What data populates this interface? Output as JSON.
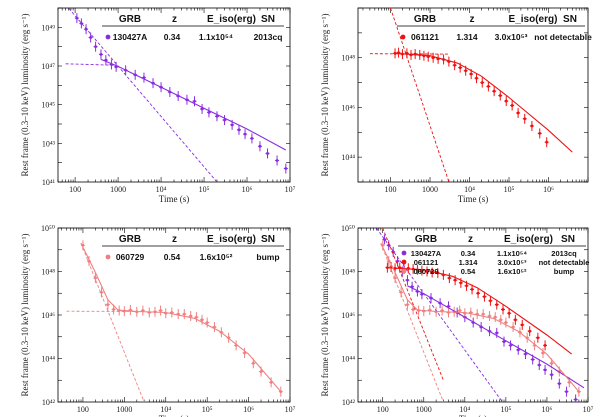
{
  "chart_data": [
    {
      "type": "line",
      "panel": "top-left",
      "xlabel": "Time (s)",
      "ylabel": "Rest frame (0.3–10 keV) luminosity (erg s⁻¹)",
      "xscale": "log",
      "yscale": "log",
      "xlim": [
        40,
        10000000
      ],
      "ylim": [
        1e+41,
        1e+50
      ],
      "xticks": [
        {
          "v": 100,
          "label": "100"
        },
        {
          "v": 1000,
          "label": "1000"
        },
        {
          "v": 10000,
          "label": "10⁴"
        },
        {
          "v": 100000,
          "label": "10⁵"
        },
        {
          "v": 1000000,
          "label": "10⁶"
        },
        {
          "v": 10000000,
          "label": "10⁷"
        }
      ],
      "yticks": [
        {
          "v": 1e+41,
          "label": "10⁴¹"
        },
        {
          "v": 1e+43,
          "label": "10⁴³"
        },
        {
          "v": 1e+45,
          "label": "10⁴⁵"
        },
        {
          "v": 1e+47,
          "label": "10⁴⁷"
        },
        {
          "v": 1e+49,
          "label": "10⁴⁹"
        }
      ],
      "legend_table": {
        "headers": [
          "GRB",
          "z",
          "E_iso(erg)",
          "SN"
        ],
        "rows": [
          {
            "grb": "130427A",
            "z": "0.34",
            "eiso": "1.1x10⁵⁴",
            "sn": "2013cq",
            "color": "#8a2be2"
          }
        ]
      },
      "series": [
        {
          "name": "130427A",
          "color": "#8a2be2",
          "x": [
            110,
            140,
            180,
            230,
            300,
            400,
            520,
            700,
            900,
            1500,
            2500,
            4000,
            6500,
            10000,
            16000,
            25000,
            40000,
            60000,
            90000,
            130000,
            200000,
            300000,
            450000,
            650000,
            900000,
            1300000,
            2000000,
            3000000,
            5000000,
            8000000
          ],
          "y": [
            3e+49,
            1.6e+49,
            8e+48,
            3e+48,
            1e+48,
            4e+47,
            2e+47,
            1.2e+47,
            9e+46,
            6e+46,
            3.5e+46,
            2.5e+46,
            1.3e+46,
            8e+45,
            4.5e+45,
            2.8e+45,
            1.8e+45,
            1.5e+45,
            6e+44,
            4e+44,
            2.5e+44,
            1.6e+44,
            9e+43,
            5e+43,
            3e+43,
            1.8e+43,
            7e+42,
            3e+42,
            1.3e+42,
            5e+41
          ]
        },
        {
          "name": "",
          "color": "#8a2be2",
          "dashed": true,
          "x": [
            60,
            200000
          ],
          "y": [
            1.5e+50,
            1e+41
          ]
        },
        {
          "name": "",
          "color": "#8a2be2",
          "dashed": true,
          "x": [
            60,
            800
          ],
          "y": [
            1.3e+47,
            1.1e+47
          ]
        },
        {
          "name": "",
          "color": "#8a2be2",
          "x": [
            400,
            1000,
            10000,
            100000,
            1000000,
            8000000
          ],
          "y": [
            2.2e+47,
            9.5e+46,
            8e+45,
            6.5e+44,
            5.5e+43,
            4.5e+42
          ]
        }
      ]
    },
    {
      "type": "line",
      "panel": "top-right",
      "xlabel": "Time (s)",
      "ylabel": "Rest frame (0.3–10 keV) luminosity (erg s⁻¹)",
      "xscale": "log",
      "yscale": "log",
      "xlim": [
        15,
        10000000
      ],
      "ylim": [
        1e+43,
        1e+50
      ],
      "xticks": [
        {
          "v": 100,
          "label": "100"
        },
        {
          "v": 1000,
          "label": "1000"
        },
        {
          "v": 10000,
          "label": "10⁴"
        },
        {
          "v": 100000,
          "label": "10⁵"
        },
        {
          "v": 1000000,
          "label": "10⁶"
        }
      ],
      "yticks": [
        {
          "v": 1e+44,
          "label": "10⁴⁴"
        },
        {
          "v": 1e+46,
          "label": "10⁴⁶"
        },
        {
          "v": 1e+48,
          "label": "10⁴⁸"
        }
      ],
      "legend_table": {
        "headers": [
          "GRB",
          "z",
          "E_iso(erg)",
          "SN"
        ],
        "rows": [
          {
            "grb": "061121",
            "z": "1.314",
            "eiso": "3.0x10⁵³",
            "sn": "not detectable",
            "color": "#ee1111"
          }
        ]
      },
      "series": [
        {
          "name": "061121",
          "color": "#ee1111",
          "x": [
            130,
            160,
            200,
            260,
            330,
            420,
            550,
            700,
            900,
            1200,
            1600,
            2200,
            3000,
            4200,
            5800,
            8000,
            11000,
            15000,
            21000,
            30000,
            42000,
            60000,
            85000,
            120000,
            170000,
            250000,
            380000,
            600000,
            900000
          ],
          "y": [
            1.5e+48,
            1.6e+48,
            1.4e+48,
            1.5e+48,
            1.3e+48,
            1.4e+48,
            1.3e+48,
            1.2e+48,
            1.1e+48,
            1e+48,
            9e+47,
            8.5e+47,
            7e+47,
            5e+47,
            4e+47,
            3e+47,
            2.2e+47,
            1.5e+47,
            1e+47,
            7e+46,
            4.5e+46,
            3e+46,
            1.8e+46,
            1.2e+46,
            6e+45,
            3.5e+45,
            1.8e+45,
            9e+44,
            4e+44
          ]
        },
        {
          "name": "",
          "color": "#ee1111",
          "dashed": true,
          "x": [
            100,
            3000
          ],
          "y": [
            1e+50,
            1e+43
          ]
        },
        {
          "name": "",
          "color": "#ee1111",
          "dashed": true,
          "x": [
            30,
            3000
          ],
          "y": [
            1.45e+48,
            1.4e+48
          ]
        },
        {
          "name": "",
          "color": "#ee1111",
          "x": [
            120,
            1000,
            5000,
            20000,
            100000,
            1000000,
            4000000
          ],
          "y": [
            1.5e+48,
            1.2e+48,
            6e+47,
            1.8e+47,
            2.5e+46,
            1.2e+45,
            1.6e+44
          ]
        }
      ]
    },
    {
      "type": "line",
      "panel": "bottom-left",
      "xlabel": "Time (s)",
      "ylabel": "Rest frame (0.3–10 keV) luminosity (erg s⁻¹)",
      "xscale": "log",
      "yscale": "log",
      "xlim": [
        25,
        10000000
      ],
      "ylim": [
        1e+42,
        1e+50
      ],
      "xticks": [
        {
          "v": 100,
          "label": "100"
        },
        {
          "v": 1000,
          "label": "1000"
        },
        {
          "v": 10000,
          "label": "10⁴"
        },
        {
          "v": 100000,
          "label": "10⁵"
        },
        {
          "v": 1000000,
          "label": "10⁶"
        },
        {
          "v": 10000000,
          "label": "10⁷"
        }
      ],
      "yticks": [
        {
          "v": 1e+42,
          "label": "10⁴²"
        },
        {
          "v": 1e+44,
          "label": "10⁴⁴"
        },
        {
          "v": 1e+46,
          "label": "10⁴⁶"
        },
        {
          "v": 1e+48,
          "label": "10⁴⁸"
        },
        {
          "v": 1e+50,
          "label": "10⁵⁰"
        }
      ],
      "legend_table": {
        "headers": [
          "GRB",
          "z",
          "E_iso(erg)",
          "SN"
        ],
        "rows": [
          {
            "grb": "060729",
            "z": "0.54",
            "eiso": "1.6x10⁵²",
            "sn": "bump",
            "color": "#f08080"
          }
        ]
      },
      "series": [
        {
          "name": "060729",
          "color": "#f08080",
          "x": [
            100,
            140,
            200,
            280,
            400,
            550,
            750,
            1000,
            1400,
            2000,
            2800,
            4000,
            5500,
            7500,
            10000,
            14000,
            20000,
            28000,
            40000,
            55000,
            75000,
            100000,
            150000,
            220000,
            330000,
            500000,
            800000,
            1300000,
            2000000,
            3500000,
            6000000
          ],
          "y": [
            1.6e+49,
            3e+48,
            5e+47,
            1.1e+47,
            3e+46,
            1.8e+46,
            1.6e+46,
            1.5e+46,
            1.7e+46,
            1.4e+46,
            1.6e+46,
            1.3e+46,
            1.4e+46,
            1.6e+46,
            1.2e+46,
            1.3e+46,
            1.1e+46,
            1.1e+46,
            9e+45,
            8e+45,
            6e+45,
            4.5e+45,
            2.8e+45,
            1.6e+45,
            9e+44,
            4e+44,
            1.8e+44,
            6e+43,
            2.5e+43,
            8e+42,
            3e+42
          ]
        },
        {
          "name": "",
          "color": "#f08080",
          "dashed": true,
          "x": [
            90,
            3000
          ],
          "y": [
            2e+49,
            1e+42
          ]
        },
        {
          "name": "",
          "color": "#f08080",
          "dashed": true,
          "x": [
            40,
            2000
          ],
          "y": [
            1.5e+46,
            1.45e+46
          ]
        },
        {
          "name": "",
          "color": "#f08080",
          "x": [
            90,
            200,
            400,
            700,
            2000,
            10000,
            50000,
            200000,
            1000000,
            6000000
          ],
          "y": [
            2e+49,
            9e+47,
            5e+46,
            1.7e+46,
            1.45e+46,
            1.3e+46,
            7e+45,
            1.8e+45,
            1.6e+44,
            3e+42
          ]
        }
      ]
    },
    {
      "type": "line",
      "panel": "bottom-right",
      "xlabel": "Time(s)",
      "ylabel": "Rest frame (0.3–10 keV) luminosity (erg s⁻¹)",
      "xscale": "log",
      "yscale": "log",
      "xlim": [
        25,
        10000000
      ],
      "ylim": [
        1e+42,
        1e+50
      ],
      "xticks": [
        {
          "v": 100,
          "label": "100"
        },
        {
          "v": 1000,
          "label": "1000"
        },
        {
          "v": 10000,
          "label": "10⁴"
        },
        {
          "v": 100000,
          "label": "10⁵"
        },
        {
          "v": 1000000,
          "label": "10⁶"
        },
        {
          "v": 10000000,
          "label": "10⁷"
        }
      ],
      "yticks": [
        {
          "v": 1e+42,
          "label": "10⁴²"
        },
        {
          "v": 1e+44,
          "label": "10⁴⁴"
        },
        {
          "v": 1e+46,
          "label": "10⁴⁶"
        },
        {
          "v": 1e+48,
          "label": "10⁴⁸"
        },
        {
          "v": 1e+50,
          "label": "10⁵⁰"
        }
      ],
      "legend_table": {
        "headers": [
          "GRB",
          "z",
          "E_iso(erg)",
          "SN"
        ],
        "rows": [
          {
            "grb": "130427A",
            "z": "0.34",
            "eiso": "1.1x10⁵⁴",
            "sn": "2013cq",
            "color": "#8a2be2"
          },
          {
            "grb": "061121",
            "z": "1.314",
            "eiso": "3.0x10⁵³",
            "sn": "not detectable",
            "color": "#ee1111"
          },
          {
            "grb": "060729",
            "z": "0.54",
            "eiso": "1.6x10⁵²",
            "sn": "bump",
            "color": "#f08080"
          }
        ]
      },
      "series": [
        {
          "name": "130427A",
          "color": "#8a2be2",
          "x": [
            110,
            140,
            180,
            230,
            300,
            400,
            520,
            700,
            900,
            1500,
            2500,
            4000,
            6500,
            10000,
            16000,
            25000,
            40000,
            60000,
            90000,
            130000,
            200000,
            300000,
            450000,
            650000,
            900000,
            1300000,
            2000000,
            3000000,
            5000000,
            8000000
          ],
          "y": [
            3e+49,
            1.6e+49,
            8e+48,
            3e+48,
            1e+48,
            4e+47,
            2e+47,
            1.2e+47,
            9e+46,
            6e+46,
            3.5e+46,
            2.5e+46,
            1.3e+46,
            8e+45,
            4.5e+45,
            2.8e+45,
            1.8e+45,
            1.5e+45,
            6e+44,
            4e+44,
            2.5e+44,
            1.6e+44,
            9e+43,
            5e+43,
            3e+43,
            1.8e+43,
            7e+42,
            3e+42,
            1.3e+42,
            5e+41
          ]
        },
        {
          "name": "061121",
          "color": "#ee1111",
          "x": [
            130,
            160,
            200,
            260,
            330,
            420,
            550,
            700,
            900,
            1200,
            1600,
            2200,
            3000,
            4200,
            5800,
            8000,
            11000,
            15000,
            21000,
            30000,
            42000,
            60000,
            85000,
            120000,
            170000,
            250000,
            380000,
            600000,
            900000
          ],
          "y": [
            1.5e+48,
            1.6e+48,
            1.4e+48,
            1.5e+48,
            1.3e+48,
            1.4e+48,
            1.3e+48,
            1.2e+48,
            1.1e+48,
            1e+48,
            9e+47,
            8.5e+47,
            7e+47,
            5e+47,
            4e+47,
            3e+47,
            2.2e+47,
            1.5e+47,
            1e+47,
            7e+46,
            4.5e+46,
            3e+46,
            1.8e+46,
            1.2e+46,
            6e+45,
            3.5e+45,
            1.8e+45,
            9e+44,
            4e+44
          ]
        },
        {
          "name": "060729",
          "color": "#f08080",
          "x": [
            100,
            140,
            200,
            280,
            400,
            550,
            750,
            1000,
            1400,
            2000,
            2800,
            4000,
            5500,
            7500,
            10000,
            14000,
            20000,
            28000,
            40000,
            55000,
            75000,
            100000,
            150000,
            220000,
            330000,
            500000,
            800000,
            1300000,
            2000000,
            3500000,
            6000000
          ],
          "y": [
            1.6e+49,
            3e+48,
            5e+47,
            1.1e+47,
            3e+46,
            1.8e+46,
            1.6e+46,
            1.5e+46,
            1.7e+46,
            1.4e+46,
            1.6e+46,
            1.3e+46,
            1.4e+46,
            1.6e+46,
            1.2e+46,
            1.3e+46,
            1.1e+46,
            1.1e+46,
            9e+45,
            8e+45,
            6e+45,
            4.5e+45,
            2.8e+45,
            1.6e+45,
            9e+44,
            4e+44,
            1.8e+44,
            6e+43,
            2.5e+43,
            8e+42,
            3e+42
          ]
        },
        {
          "name": "",
          "color": "#8a2be2",
          "dashed": true,
          "x": [
            60,
            200000
          ],
          "y": [
            1.5e+50,
            1e+41
          ]
        },
        {
          "name": "",
          "color": "#ee1111",
          "dashed": true,
          "x": [
            100,
            3000
          ],
          "y": [
            1e+50,
            1e+43
          ]
        },
        {
          "name": "",
          "color": "#f08080",
          "dashed": true,
          "x": [
            90,
            3000
          ],
          "y": [
            2e+49,
            1e+42
          ]
        },
        {
          "name": "",
          "color": "#8a2be2",
          "x": [
            400,
            1000,
            10000,
            100000,
            1000000,
            8000000
          ],
          "y": [
            2.2e+47,
            9.5e+46,
            8e+45,
            6.5e+44,
            5.5e+43,
            4.5e+42
          ]
        },
        {
          "name": "",
          "color": "#ee1111",
          "x": [
            120,
            1000,
            5000,
            20000,
            100000,
            1000000,
            4000000
          ],
          "y": [
            1.5e+48,
            1.2e+48,
            6e+47,
            1.8e+47,
            2.5e+46,
            1.2e+45,
            1.6e+44
          ]
        },
        {
          "name": "",
          "color": "#f08080",
          "x": [
            90,
            200,
            400,
            700,
            2000,
            10000,
            50000,
            200000,
            1000000,
            6000000
          ],
          "y": [
            2e+49,
            9e+47,
            5e+46,
            1.7e+46,
            1.45e+46,
            1.3e+46,
            7e+45,
            1.8e+45,
            1.6e+44,
            3e+42
          ]
        }
      ]
    }
  ]
}
